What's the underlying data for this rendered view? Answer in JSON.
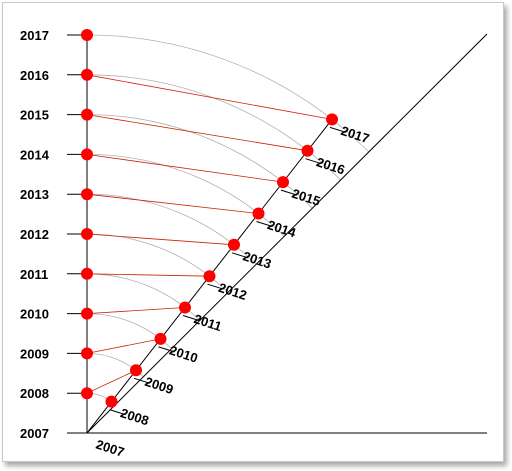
{
  "axis_years": [
    "2007",
    "2008",
    "2009",
    "2010",
    "2011",
    "2012",
    "2013",
    "2014",
    "2015",
    "2016",
    "2017"
  ],
  "diagonal_years": [
    "2007",
    "2008",
    "2009",
    "2010",
    "2011",
    "2012",
    "2013",
    "2014",
    "2015",
    "2016",
    "2017"
  ],
  "colors": {
    "point": "#ff0000",
    "hatch": "#cc2200",
    "arc": "#b0b0b0",
    "axis": "#000000",
    "frame_border": "#c9c9c9"
  }
}
